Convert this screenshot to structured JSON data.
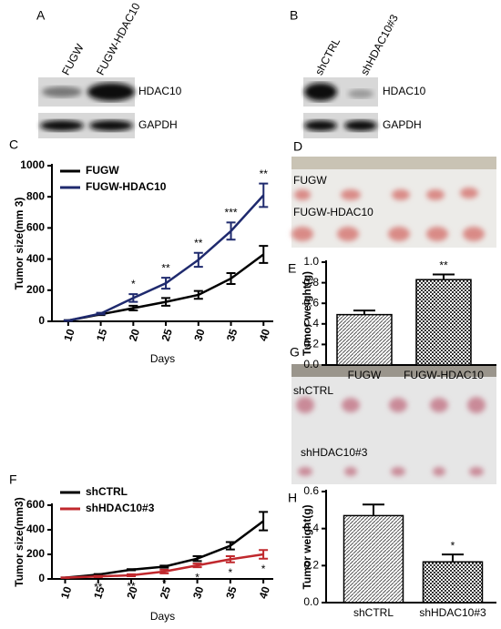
{
  "blots": [
    {
      "panel": "A",
      "lanes": [
        "FUGW",
        "FUGW-HDAC10"
      ],
      "bands": [
        "HDAC10",
        "GAPDH"
      ]
    },
    {
      "panel": "B",
      "lanes": [
        "shCTRL",
        "shHDAC10#3"
      ],
      "bands": [
        "HDAC10",
        "GAPDH"
      ]
    }
  ],
  "photos": [
    {
      "panel": "D",
      "groups": [
        "FUGW",
        "FUGW-HDAC10"
      ]
    },
    {
      "panel": "G",
      "groups": [
        "shCTRL",
        "shHDAC10#3"
      ]
    }
  ],
  "chart_data": [
    {
      "panel": "C",
      "type": "line",
      "xlabel": "Days",
      "ylabel": "Tumor  size(mm 3)",
      "x": [
        10,
        15,
        20,
        25,
        30,
        35,
        40
      ],
      "xlim": [
        7.5,
        41.5
      ],
      "xticks": [
        10,
        15,
        20,
        25,
        30,
        35,
        40
      ],
      "ylim": [
        0,
        1000
      ],
      "yticks": [
        0,
        200,
        400,
        600,
        800,
        1000
      ],
      "series": [
        {
          "name": "FUGW",
          "color": "#000000",
          "values": [
            5,
            45,
            85,
            125,
            170,
            275,
            430
          ],
          "errors": [
            2,
            5,
            15,
            25,
            25,
            35,
            55
          ]
        },
        {
          "name": "FUGW-HDAC10",
          "color": "#1f2a6e",
          "values": [
            5,
            50,
            150,
            245,
            395,
            580,
            810
          ],
          "errors": [
            2,
            5,
            25,
            35,
            45,
            55,
            75
          ]
        }
      ],
      "annotations": [
        null,
        null,
        "*",
        "**",
        "**",
        "***",
        "**"
      ]
    },
    {
      "panel": "E",
      "type": "bar",
      "ylabel": "Tumor  weight(g)",
      "categories": [
        "FUGW",
        "FUGW-HDAC10"
      ],
      "values": [
        0.49,
        0.83
      ],
      "errors": [
        0.04,
        0.05
      ],
      "ylim": [
        0,
        1
      ],
      "yticks": [
        {
          "value": 0,
          "label": "0.0"
        },
        0.2,
        0.4,
        0.6,
        0.8,
        {
          "value": 1,
          "label": "1.0"
        }
      ],
      "annotations": [
        null,
        "**"
      ]
    },
    {
      "panel": "F",
      "type": "line",
      "xlabel": "Days",
      "ylabel": "Tumor  size(mm3)",
      "x": [
        10,
        15,
        20,
        25,
        30,
        35,
        40
      ],
      "xlim": [
        8,
        41.5
      ],
      "xticks": [
        10,
        15,
        20,
        25,
        30,
        35,
        40
      ],
      "ylim": [
        0,
        600
      ],
      "yticks": [
        0,
        200,
        400,
        600
      ],
      "series": [
        {
          "name": "shCTRL",
          "color": "#000000",
          "values": [
            10,
            35,
            75,
            100,
            165,
            270,
            470
          ],
          "errors": [
            2,
            5,
            5,
            8,
            20,
            30,
            75
          ]
        },
        {
          "name": "shHDAC10#3",
          "color": "#c0282d",
          "values": [
            10,
            20,
            30,
            60,
            110,
            160,
            200
          ],
          "errors": [
            2,
            5,
            8,
            15,
            15,
            25,
            35
          ]
        }
      ],
      "annotations": [
        null,
        "**",
        "**",
        "*",
        "*",
        "*",
        "*"
      ]
    },
    {
      "panel": "H",
      "type": "bar",
      "ylabel": "Tumor  weight(g)",
      "categories": [
        "shCTRL",
        "shHDAC10#3"
      ],
      "values": [
        0.47,
        0.22
      ],
      "errors": [
        0.06,
        0.04
      ],
      "ylim": [
        0,
        0.6
      ],
      "yticks": [
        {
          "value": 0,
          "label": "0.0"
        },
        0.2,
        0.4,
        0.6
      ],
      "annotations": [
        null,
        "*"
      ]
    }
  ]
}
